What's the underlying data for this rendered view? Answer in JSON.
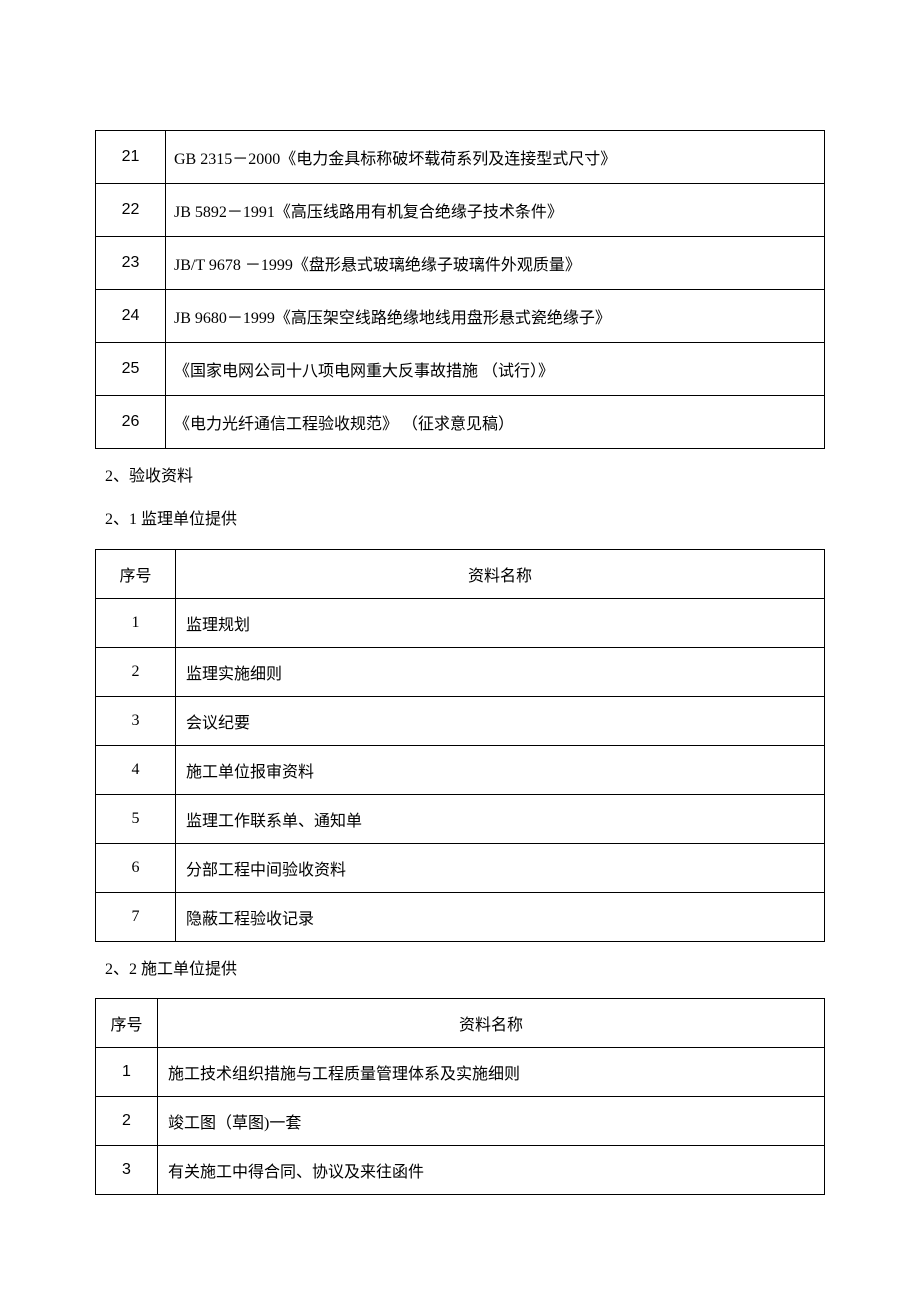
{
  "table1": {
    "rows": [
      {
        "num": "21",
        "content": "GB 2315－2000《电力金具标称破坏载荷系列及连接型式尺寸》"
      },
      {
        "num": "22",
        "content": "JB 5892－1991《高压线路用有机复合绝缘子技术条件》"
      },
      {
        "num": "23",
        "content": "JB/T 9678 －1999《盘形悬式玻璃绝缘子玻璃件外观质量》"
      },
      {
        "num": "24",
        "content": "JB 9680－1999《高压架空线路绝缘地线用盘形悬式瓷绝缘子》"
      },
      {
        "num": "25",
        "content": "《国家电网公司十八项电网重大反事故措施 （试行）》"
      },
      {
        "num": "26",
        "content": "《电力光纤通信工程验收规范》 （征求意见稿）"
      }
    ]
  },
  "section1": "2、验收资料",
  "section2": "2、1 监理单位提供",
  "table2": {
    "header": {
      "col1": "序号",
      "col2": "资料名称"
    },
    "rows": [
      {
        "num": "1",
        "content": "监理规划"
      },
      {
        "num": "2",
        "content": "监理实施细则"
      },
      {
        "num": "3",
        "content": "会议纪要"
      },
      {
        "num": "4",
        "content": "施工单位报审资料"
      },
      {
        "num": "5",
        "content": "监理工作联系单、通知单"
      },
      {
        "num": "6",
        "content": "分部工程中间验收资料"
      },
      {
        "num": "7",
        "content": "隐蔽工程验收记录"
      }
    ]
  },
  "section3": "2、2 施工单位提供",
  "table3": {
    "header": {
      "col1": "序号",
      "col2": "资料名称"
    },
    "rows": [
      {
        "num": "1",
        "content": "施工技术组织措施与工程质量管理体系及实施细则"
      },
      {
        "num": "2",
        "content": "竣工图（草图)一套"
      },
      {
        "num": "3",
        "content": "有关施工中得合同、协议及来往函件"
      }
    ]
  }
}
